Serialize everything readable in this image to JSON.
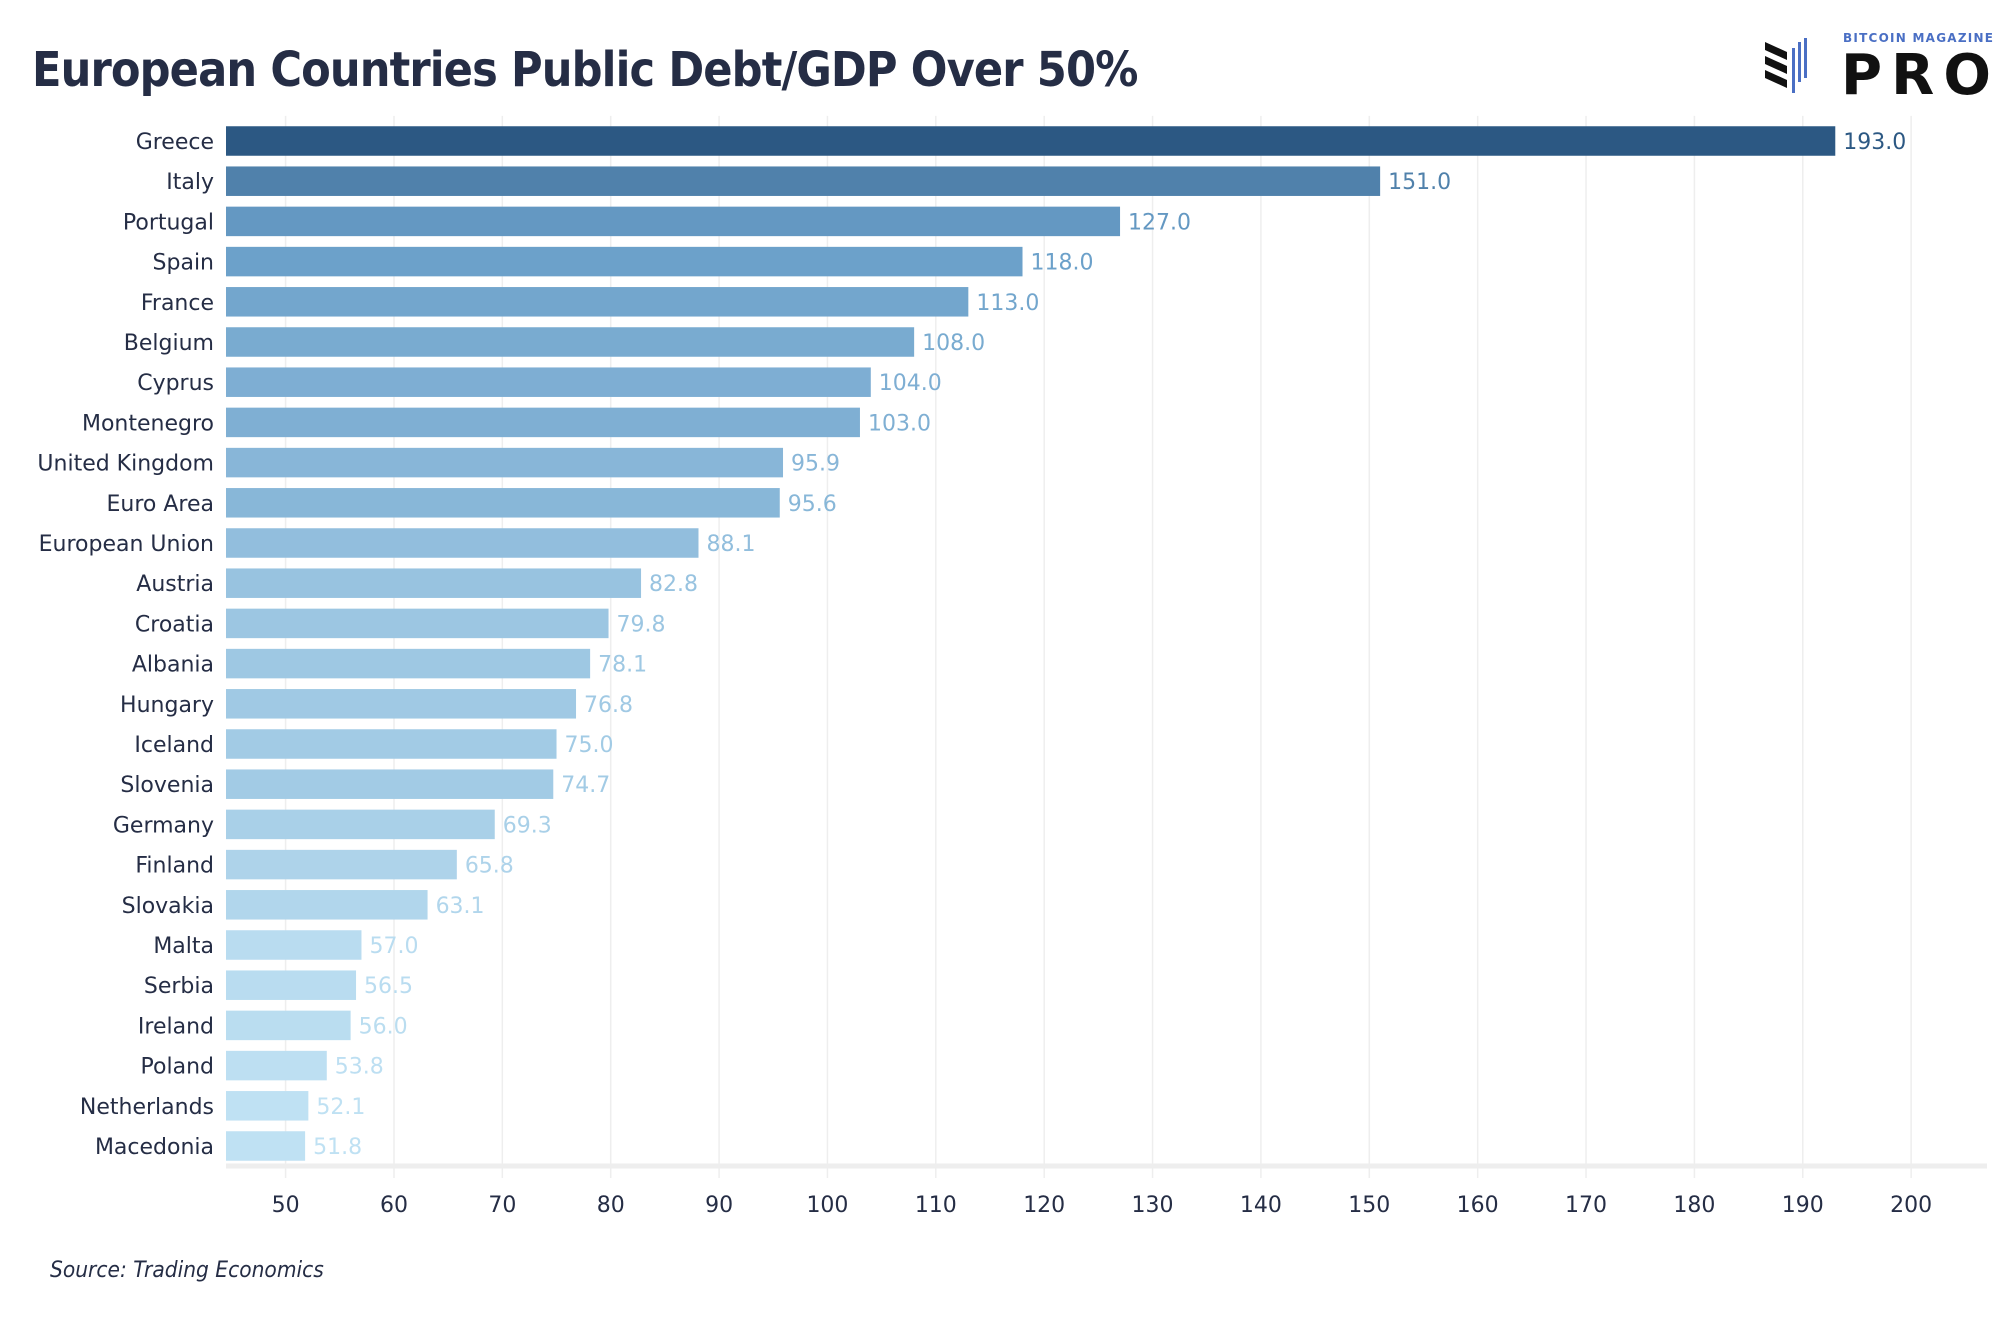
{
  "title": "European Countries Public Debt/GDP Over 50%",
  "source": "Source: Trading Economics",
  "logo": {
    "top": "BITCOIN MAGAZINE",
    "main": "PRO"
  },
  "colors": {
    "dark": "#2c5883",
    "mid": "#6a9fc9",
    "light": "#bfe1f3",
    "text": "#252d45",
    "grid": "#eeeeee"
  },
  "chart_data": {
    "type": "bar",
    "orientation": "horizontal",
    "title": "European Countries Public Debt/GDP Over 50%",
    "xlabel": "",
    "ylabel": "",
    "xlim": [
      44.5,
      207
    ],
    "x_ticks": [
      50,
      60,
      70,
      80,
      90,
      100,
      110,
      120,
      130,
      140,
      150,
      160,
      170,
      180,
      190,
      200
    ],
    "grid": "vertical",
    "categories": [
      "Greece",
      "Italy",
      "Portugal",
      "Spain",
      "France",
      "Belgium",
      "Cyprus",
      "Montenegro",
      "United Kingdom",
      "Euro Area",
      "European Union",
      "Austria",
      "Croatia",
      "Albania",
      "Hungary",
      "Iceland",
      "Slovenia",
      "Germany",
      "Finland",
      "Slovakia",
      "Malta",
      "Serbia",
      "Ireland",
      "Poland",
      "Netherlands",
      "Macedonia"
    ],
    "values": [
      193.0,
      151.0,
      127.0,
      118.0,
      113.0,
      108.0,
      104.0,
      103.0,
      95.9,
      95.6,
      88.1,
      82.8,
      79.8,
      78.1,
      76.8,
      75.0,
      74.7,
      69.3,
      65.8,
      63.1,
      57.0,
      56.5,
      56.0,
      53.8,
      52.1,
      51.8
    ],
    "value_labels": [
      "193.0",
      "151.0",
      "127.0",
      "118.0",
      "113.0",
      "108.0",
      "104.0",
      "103.0",
      "95.9",
      "95.6",
      "88.1",
      "82.8",
      "79.8",
      "78.1",
      "76.8",
      "75.0",
      "74.7",
      "69.3",
      "65.8",
      "63.1",
      "57.0",
      "56.5",
      "56.0",
      "53.8",
      "52.1",
      "51.8"
    ]
  }
}
